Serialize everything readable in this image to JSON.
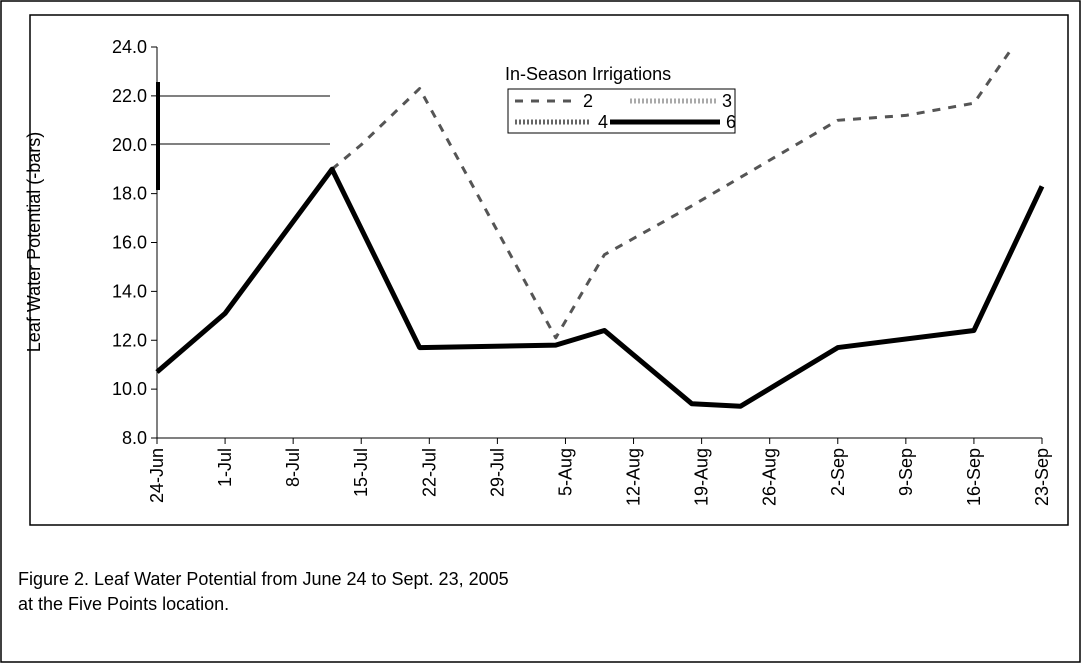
{
  "chart_data": {
    "type": "line",
    "y_label": "Leaf Water Potential (-bars)",
    "caption": [
      "Figure 2. Leaf Water Potential from June 24  to  Sept. 23, 2005",
      "at the Five Points location."
    ],
    "legend_title": "In-Season Irrigations",
    "series": [
      {
        "name": "2",
        "color": "#555555",
        "style": "dashed",
        "x": [
          "12-Jul",
          "15-Jul",
          "21-Jul",
          "4-Aug",
          "9-Aug",
          "18-Aug",
          "2-Sep",
          "9-Sep",
          "16-Sep",
          "20-Sep"
        ],
        "values": [
          19.0,
          20.0,
          22.3,
          12.1,
          15.5,
          17.5,
          21.0,
          21.2,
          21.7,
          24.0
        ]
      },
      {
        "name": "3",
        "color": "#aaaaaa",
        "style": "dotted",
        "x": [],
        "values": []
      },
      {
        "name": "4",
        "color": "#666666",
        "style": "dotted",
        "x": [],
        "values": []
      },
      {
        "name": "6",
        "color": "#000000",
        "style": "solid",
        "x": [
          "24-Jun",
          "1-Jul",
          "12-Jul",
          "21-Jul",
          "4-Aug",
          "9-Aug",
          "18-Aug",
          "23-Aug",
          "2-Sep",
          "16-Sep",
          "23-Sep"
        ],
        "values": [
          10.7,
          13.1,
          19.0,
          11.7,
          11.8,
          12.4,
          9.4,
          9.3,
          11.7,
          12.4,
          18.3
        ]
      }
    ],
    "xlim": [
      "24-Jun",
      "23-Sep"
    ],
    "xticks": [
      "24-Jun",
      "1-Jul",
      "8-Jul",
      "15-Jul",
      "22-Jul",
      "29-Jul",
      "5-Aug",
      "12-Aug",
      "19-Aug",
      "26-Aug",
      "2-Sep",
      "9-Sep",
      "16-Sep",
      "23-Sep"
    ],
    "ylim": [
      8,
      24
    ],
    "yticks": [
      {
        "value": 8,
        "label": "8.0"
      },
      {
        "value": 10,
        "label": "10.0"
      },
      {
        "value": 12,
        "label": "12.0"
      },
      {
        "value": 14,
        "label": "14.0"
      },
      {
        "value": 16,
        "label": "16.0"
      },
      {
        "value": 18,
        "label": "18.0"
      },
      {
        "value": 20,
        "label": "20.0"
      },
      {
        "value": 22,
        "label": "22.0"
      },
      {
        "value": 24,
        "label": "24.0"
      }
    ],
    "grid": false
  }
}
